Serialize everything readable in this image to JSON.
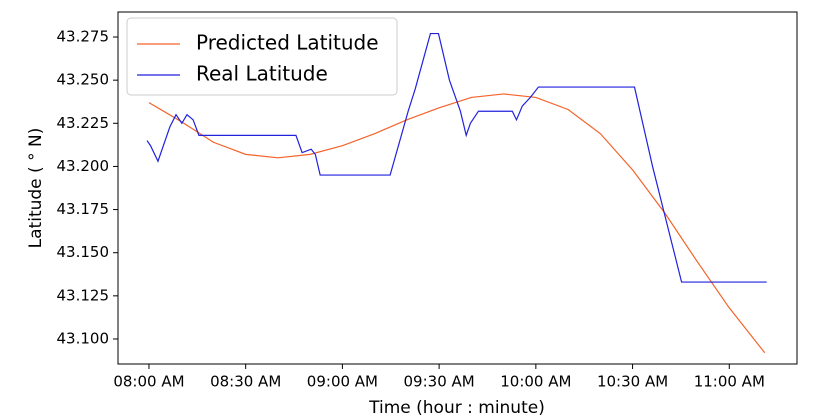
{
  "chart_data": {
    "type": "line",
    "xlabel": "Time (hour : minute)",
    "ylabel": "Latitude ( ° N)",
    "legend": "upper left",
    "xlim": [
      -9.6,
      201
    ],
    "ylim": [
      43.0855,
      43.2895
    ],
    "xticks": [
      {
        "value": 0,
        "label": "08:00 AM"
      },
      {
        "value": 30,
        "label": "08:30 AM"
      },
      {
        "value": 60,
        "label": "09:00 AM"
      },
      {
        "value": 90,
        "label": "09:30 AM"
      },
      {
        "value": 120,
        "label": "10:00 AM"
      },
      {
        "value": 150,
        "label": "10:30 AM"
      },
      {
        "value": 180,
        "label": "11:00 AM"
      }
    ],
    "yticks": [
      {
        "value": 43.1,
        "label": "43.100"
      },
      43.125,
      {
        "value": 43.15,
        "label": "43.150"
      },
      43.175,
      {
        "value": 43.2,
        "label": "43.200"
      },
      43.225,
      {
        "value": 43.25,
        "label": "43.250"
      },
      43.275
    ],
    "series": [
      {
        "name": "Predicted Latitude",
        "color": "#f4632a",
        "x": [
          0,
          10,
          20,
          30,
          40,
          50,
          60,
          70,
          80,
          90,
          100,
          110,
          120,
          130,
          140,
          150,
          160,
          170,
          180,
          191
        ],
        "values": [
          43.237,
          43.226,
          43.214,
          43.207,
          43.205,
          43.207,
          43.212,
          43.219,
          43.227,
          43.234,
          43.24,
          43.242,
          43.24,
          43.233,
          43.219,
          43.198,
          43.173,
          43.145,
          43.118,
          43.092
        ]
      },
      {
        "name": "Real Latitude",
        "color": "#2222dd",
        "x": [
          -0.6,
          0.5,
          2.8,
          6.5,
          8.4,
          10.2,
          11.8,
          13.7,
          15.5,
          45.6,
          47.5,
          50.3,
          51.6,
          53.1,
          74.8,
          80.4,
          82.6,
          85.1,
          87.3,
          89.8,
          93.2,
          96.6,
          98.4,
          99.7,
          102.2,
          112.7,
          114,
          115.8,
          118.3,
          120.8,
          150.6,
          156.2,
          165.2,
          191.6
        ],
        "values": [
          43.215,
          43.212,
          43.203,
          43.223,
          43.23,
          43.225,
          43.23,
          43.227,
          43.218,
          43.218,
          43.208,
          43.21,
          43.207,
          43.195,
          43.195,
          43.232,
          43.245,
          43.262,
          43.277,
          43.277,
          43.25,
          43.232,
          43.218,
          43.225,
          43.232,
          43.232,
          43.227,
          43.235,
          43.24,
          43.246,
          43.246,
          43.2,
          43.133,
          43.133
        ]
      }
    ]
  }
}
